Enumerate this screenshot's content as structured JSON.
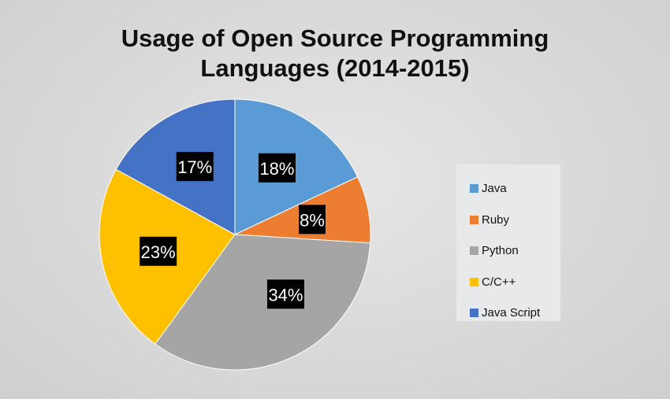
{
  "chart_data": {
    "type": "pie",
    "title": "Usage of Open Source Programming Languages (2014-2015)",
    "title_lines": [
      "Usage of Open Source Programming",
      "Languages (2014-2015)"
    ],
    "categories": [
      "Java",
      "Ruby",
      "Python",
      "C/C++",
      "Java Script"
    ],
    "values": [
      18,
      8,
      34,
      23,
      17
    ],
    "data_labels": [
      "18%",
      "8%",
      "34%",
      "23%",
      "17%"
    ],
    "colors": [
      "#5b9bd5",
      "#ed7d31",
      "#a5a5a5",
      "#ffc000",
      "#4472c4"
    ],
    "start_angle": "12 o'clock",
    "direction": "clockwise",
    "legend_position": "right"
  }
}
